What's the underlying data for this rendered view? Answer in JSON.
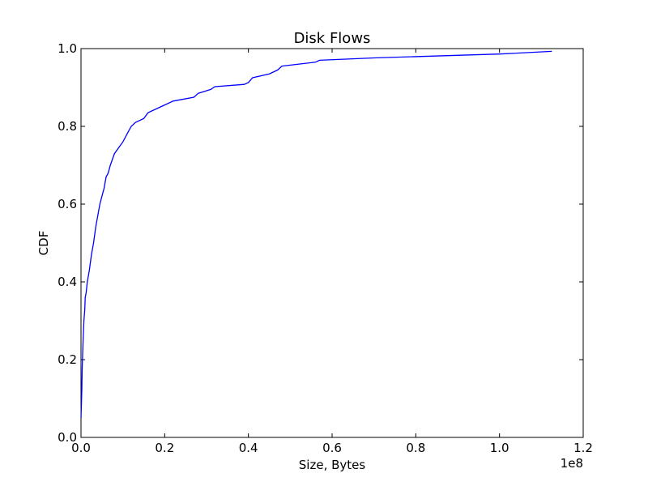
{
  "chart_data": {
    "type": "line",
    "title": "Disk Flows",
    "xlabel": "Size, Bytes",
    "ylabel": "CDF",
    "x_scale_label": "1e8",
    "xlim": [
      0.0,
      1.2
    ],
    "ylim": [
      0.0,
      1.0
    ],
    "xticks": [
      "0.0",
      "0.2",
      "0.4",
      "0.6",
      "0.8",
      "1.0",
      "1.2"
    ],
    "yticks": [
      "0.0",
      "0.2",
      "0.4",
      "0.6",
      "0.8",
      "1.0"
    ],
    "grid": false,
    "legend": "none",
    "line_color": "#0000ff",
    "series": [
      {
        "x": [
          0.0,
          0.002,
          0.003,
          0.005,
          0.007,
          0.009,
          0.01,
          0.012,
          0.015,
          0.02,
          0.025,
          0.03,
          0.035,
          0.04,
          0.045,
          0.05,
          0.055,
          0.06,
          0.065,
          0.07,
          0.08,
          0.09,
          0.1,
          0.11,
          0.12,
          0.13,
          0.15,
          0.16,
          0.18,
          0.2,
          0.22,
          0.27,
          0.28,
          0.31,
          0.32,
          0.39,
          0.4,
          0.41,
          0.45,
          0.47,
          0.48,
          0.56,
          0.57,
          0.7,
          1.0,
          1.125
        ],
        "y": [
          0.05,
          0.12,
          0.18,
          0.25,
          0.3,
          0.33,
          0.36,
          0.37,
          0.4,
          0.43,
          0.47,
          0.5,
          0.54,
          0.57,
          0.6,
          0.62,
          0.64,
          0.67,
          0.68,
          0.7,
          0.73,
          0.745,
          0.76,
          0.78,
          0.8,
          0.81,
          0.82,
          0.835,
          0.845,
          0.855,
          0.865,
          0.875,
          0.885,
          0.895,
          0.902,
          0.908,
          0.913,
          0.925,
          0.935,
          0.945,
          0.955,
          0.965,
          0.97,
          0.976,
          0.986,
          0.993
        ]
      }
    ]
  }
}
